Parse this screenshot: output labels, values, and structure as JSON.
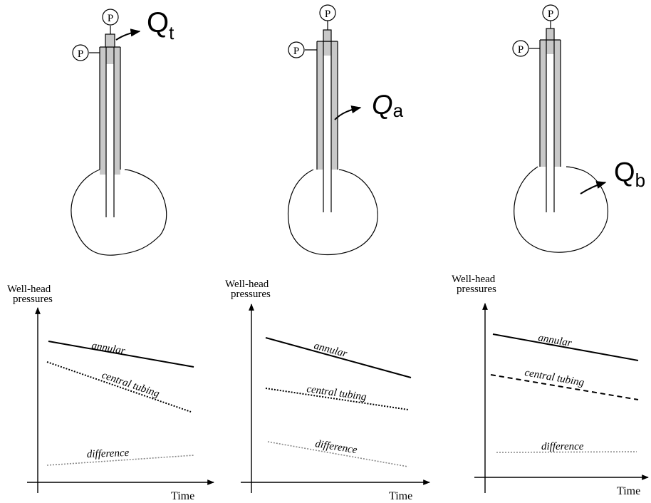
{
  "wells": [
    {
      "flow_label_main": "Q",
      "flow_label_sub": "t",
      "gauge_label": "P"
    },
    {
      "flow_label_main": "Q",
      "flow_label_sub": "a",
      "gauge_label": "P"
    },
    {
      "flow_label_main": "Q",
      "flow_label_sub": "b",
      "gauge_label": "P"
    }
  ],
  "plots": [
    {
      "ylabel_line1": "Well-head",
      "ylabel_line2": "pressures",
      "xlabel": "Time",
      "annular_label": "annular",
      "central_label": "central tubing",
      "difference_label": "difference"
    },
    {
      "ylabel_line1": "Well-head",
      "ylabel_line2": "pressures",
      "xlabel": "Time",
      "annular_label": "annular",
      "central_label": "central tubing",
      "difference_label": "difference"
    },
    {
      "ylabel_line1": "Well-head",
      "ylabel_line2": "pressures",
      "xlabel": "Time",
      "annular_label": "annular",
      "central_label": "central tubing",
      "difference_label": "difference"
    }
  ],
  "colors": {
    "casing": "#c8c8c8",
    "ink": "#000000"
  }
}
